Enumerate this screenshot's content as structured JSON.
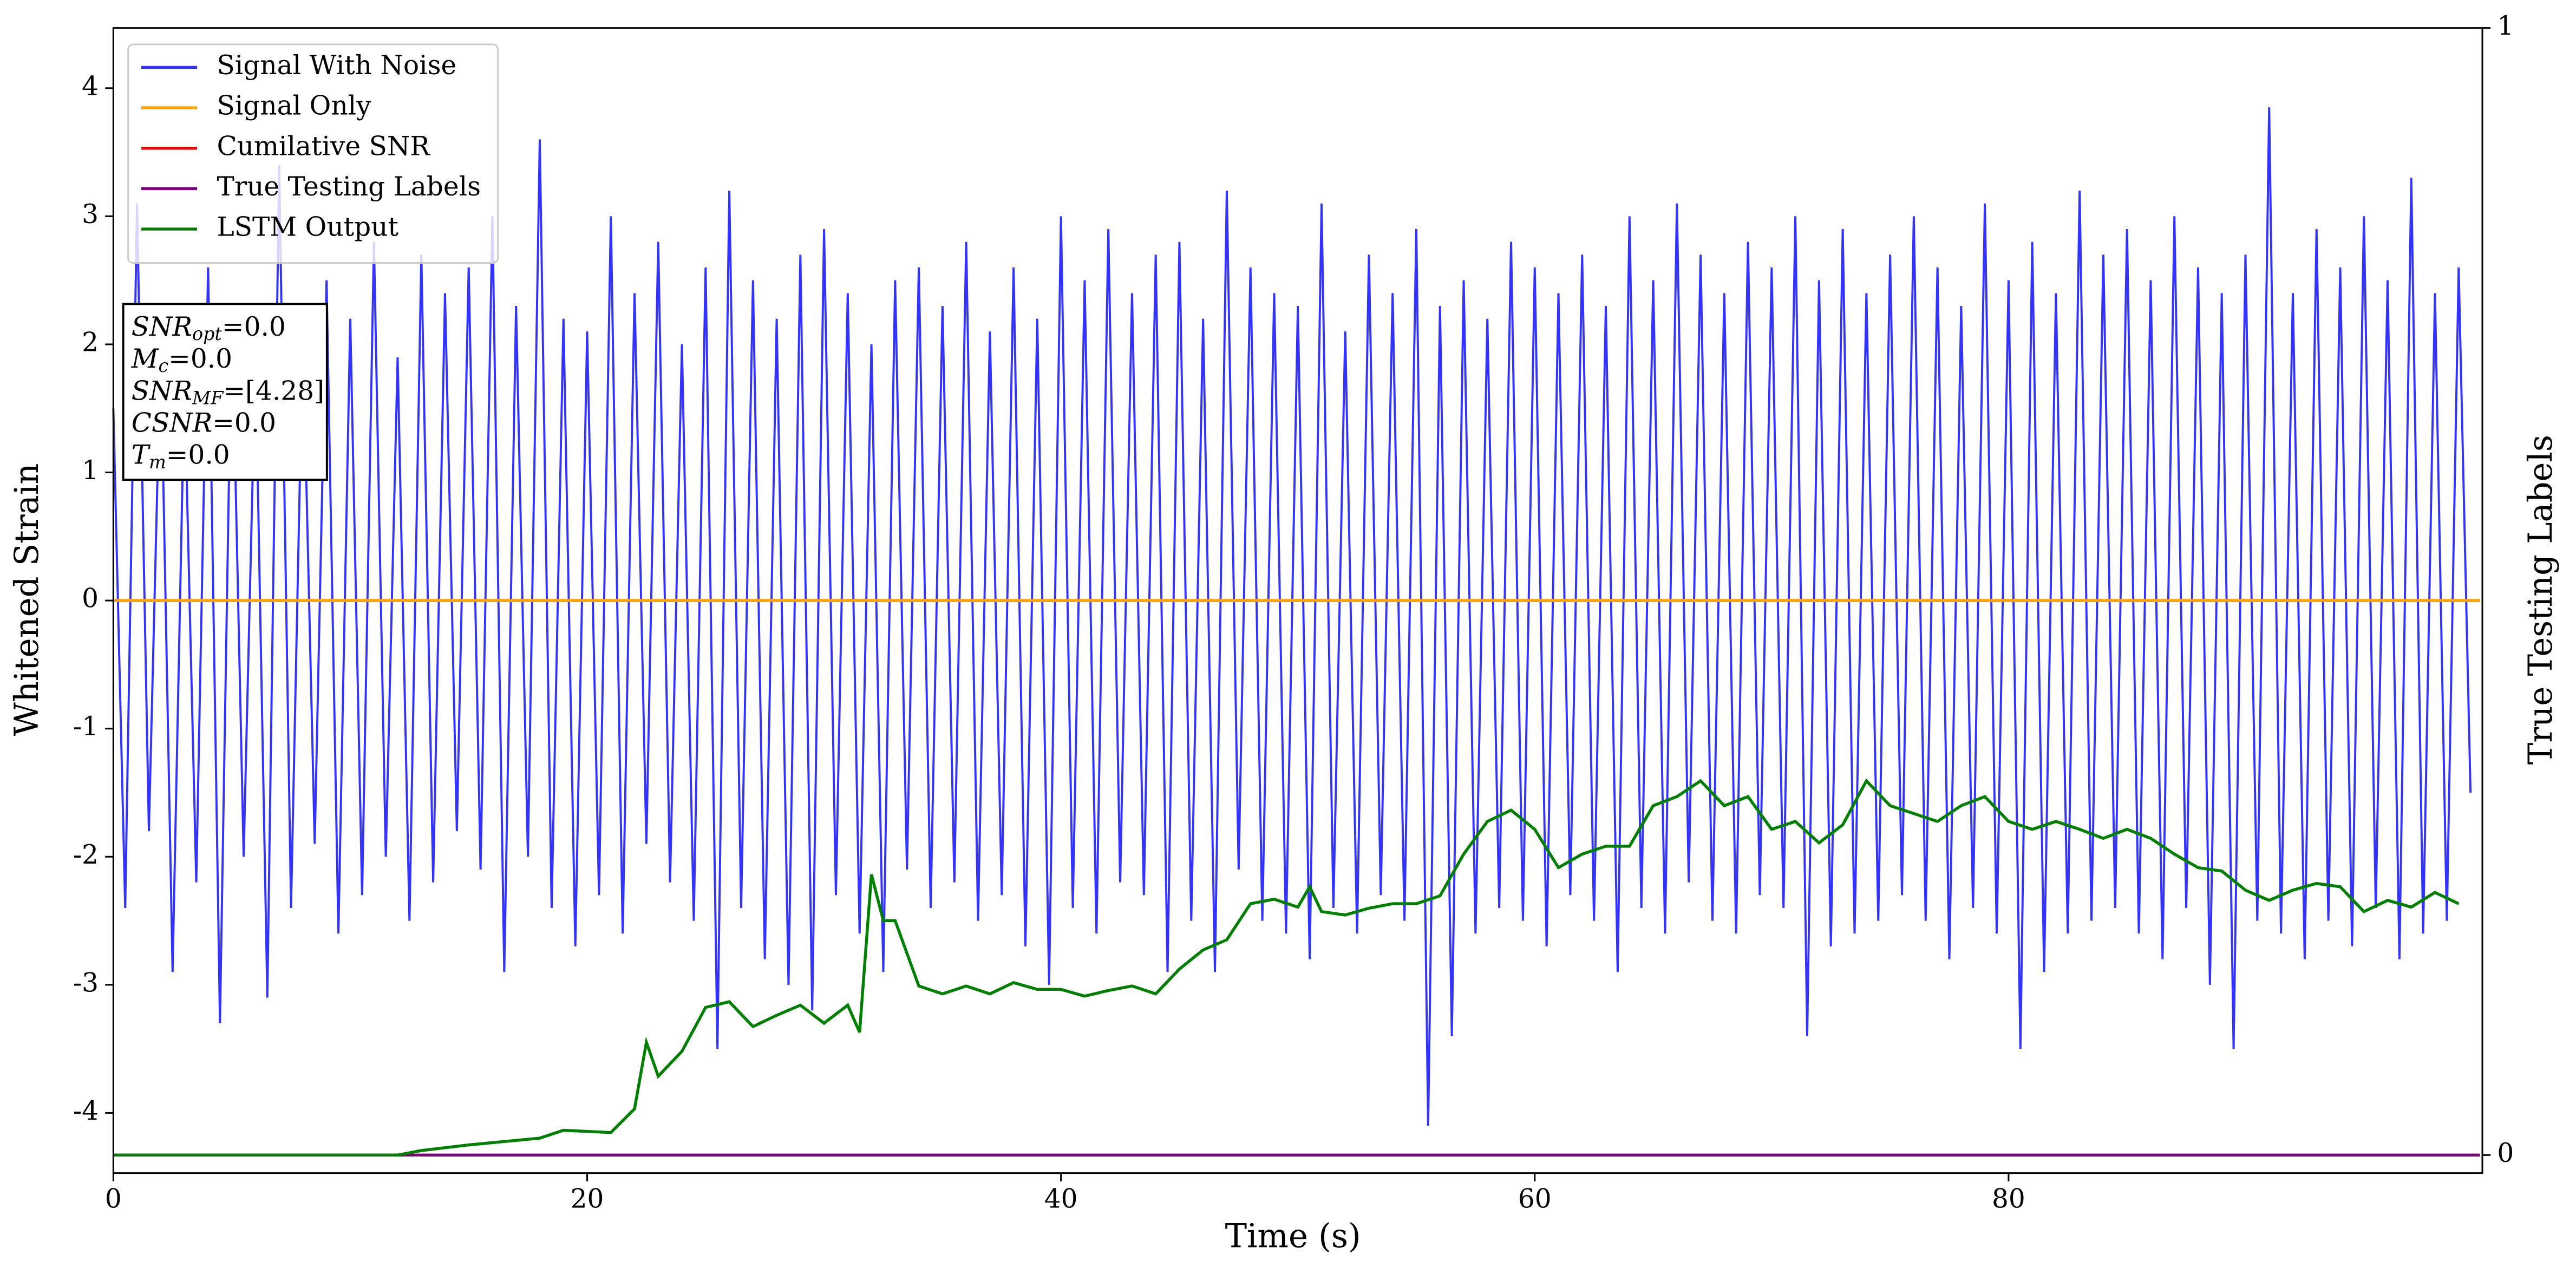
{
  "chart_data": {
    "type": "line",
    "xlabel": "Time (s)",
    "ylabel": "Whitened Strain",
    "y2label": "True Testing Labels",
    "xlim": [
      0,
      100
    ],
    "xticks": [
      0,
      20,
      40,
      60,
      80
    ],
    "ylim": [
      -4.47,
      4.47
    ],
    "yticks": [
      -4,
      -3,
      -2,
      -1,
      0,
      1,
      2,
      3,
      4
    ],
    "y2lim": [
      -0.016,
      1
    ],
    "y2ticks": [
      0,
      1
    ],
    "legend": "upper left",
    "annotation": [
      {
        "main": "SNR",
        "sub": "opt",
        "rest": "=0.0"
      },
      {
        "main": "M",
        "sub": "c",
        "rest": "=0.0"
      },
      {
        "main": "SNR",
        "sub": "MF",
        "rest": "=[4.28]"
      },
      {
        "main": "CSNR",
        "rest": "=0.0"
      },
      {
        "main": "T",
        "sub": "m",
        "rest": "=0.0"
      }
    ],
    "series": [
      {
        "name": "Signal With Noise",
        "color": "#3333ff",
        "x": [
          0,
          0.5,
          1,
          1.5,
          2,
          2.5,
          3,
          3.5,
          4,
          4.5,
          5,
          5.5,
          6,
          6.5,
          7,
          7.5,
          8,
          8.5,
          9,
          9.5,
          10,
          10.5,
          11,
          11.5,
          12,
          12.5,
          13,
          13.5,
          14,
          14.5,
          15,
          15.5,
          16,
          16.5,
          17,
          17.5,
          18,
          18.5,
          19,
          19.5,
          20,
          20.5,
          21,
          21.5,
          22,
          22.5,
          23,
          23.5,
          24,
          24.5,
          25,
          25.5,
          26,
          26.5,
          27,
          27.5,
          28,
          28.5,
          29,
          29.5,
          30,
          30.5,
          31,
          31.5,
          32,
          32.5,
          33,
          33.5,
          34,
          34.5,
          35,
          35.5,
          36,
          36.5,
          37,
          37.5,
          38,
          38.5,
          39,
          39.5,
          40,
          40.5,
          41,
          41.5,
          42,
          42.5,
          43,
          43.5,
          44,
          44.5,
          45,
          45.5,
          46,
          46.5,
          47,
          47.5,
          48,
          48.5,
          49,
          49.5,
          50,
          50.5,
          51,
          51.5,
          52,
          52.5,
          53,
          53.5,
          54,
          54.5,
          55,
          55.5,
          56,
          56.5,
          57,
          57.5,
          58,
          58.5,
          59,
          59.5,
          60,
          60.5,
          61,
          61.5,
          62,
          62.5,
          63,
          63.5,
          64,
          64.5,
          65,
          65.5,
          66,
          66.5,
          67,
          67.5,
          68,
          68.5,
          69,
          69.5,
          70,
          70.5,
          71,
          71.5,
          72,
          72.5,
          73,
          73.5,
          74,
          74.5,
          75,
          75.5,
          76,
          76.5,
          77,
          77.5,
          78,
          78.5,
          79,
          79.5,
          80,
          80.5,
          81,
          81.5,
          82,
          82.5,
          83,
          83.5,
          84,
          84.5,
          85,
          85.5,
          86,
          86.5,
          87,
          87.5,
          88,
          88.5,
          89,
          89.5,
          90,
          90.5,
          91,
          91.5,
          92,
          92.5,
          93,
          93.5,
          94,
          94.5,
          95,
          95.5,
          96,
          96.5,
          97,
          97.5,
          98,
          98.5,
          99,
          99.5
        ],
        "values": [
          1.5,
          -2.4,
          3.1,
          -1.8,
          2.0,
          -2.9,
          1.7,
          -2.2,
          2.6,
          -3.3,
          2.3,
          -2.0,
          1.9,
          -3.1,
          3.4,
          -2.4,
          2.1,
          -1.9,
          2.5,
          -2.6,
          2.2,
          -2.3,
          2.8,
          -2.0,
          1.9,
          -2.5,
          2.7,
          -2.2,
          2.4,
          -1.8,
          2.6,
          -2.1,
          3.0,
          -2.9,
          2.3,
          -2.0,
          3.6,
          -2.4,
          2.2,
          -2.7,
          2.1,
          -2.3,
          3.0,
          -2.6,
          2.4,
          -1.9,
          2.8,
          -2.2,
          2.0,
          -2.5,
          2.6,
          -3.5,
          3.2,
          -2.4,
          2.5,
          -2.8,
          2.2,
          -3.0,
          2.7,
          -3.2,
          2.9,
          -2.3,
          2.4,
          -2.6,
          2.0,
          -2.9,
          2.5,
          -2.1,
          2.6,
          -2.4,
          2.3,
          -2.2,
          2.8,
          -2.5,
          2.1,
          -2.3,
          2.6,
          -2.7,
          2.2,
          -3.0,
          3.0,
          -2.4,
          2.5,
          -2.6,
          2.9,
          -2.2,
          2.4,
          -2.3,
          2.7,
          -2.9,
          2.8,
          -2.5,
          2.2,
          -2.9,
          3.2,
          -2.1,
          2.6,
          -2.5,
          2.4,
          -2.6,
          2.3,
          -2.8,
          3.1,
          -2.4,
          2.1,
          -2.6,
          2.7,
          -2.3,
          2.4,
          -2.5,
          2.9,
          -4.1,
          2.3,
          -3.4,
          2.5,
          -2.6,
          2.2,
          -2.4,
          2.8,
          -2.5,
          2.6,
          -2.7,
          2.4,
          -2.3,
          2.7,
          -2.5,
          2.3,
          -2.9,
          3.0,
          -2.4,
          2.5,
          -2.6,
          3.1,
          -2.2,
          2.7,
          -2.5,
          2.4,
          -2.6,
          2.8,
          -2.3,
          2.6,
          -2.4,
          3.0,
          -3.4,
          2.5,
          -2.7,
          2.9,
          -2.6,
          2.4,
          -2.5,
          2.7,
          -2.3,
          3.0,
          -2.5,
          2.6,
          -2.8,
          2.3,
          -2.4,
          3.1,
          -2.6,
          2.5,
          -3.5,
          2.8,
          -2.9,
          2.4,
          -2.6,
          3.2,
          -2.5,
          2.7,
          -2.4,
          2.9,
          -2.6,
          2.5,
          -2.8,
          3.0,
          -2.4,
          2.6,
          -3.0,
          2.4,
          -3.5,
          2.7,
          -2.5,
          3.85,
          -2.6,
          2.4,
          -2.8,
          2.9,
          -2.5,
          2.6,
          -2.7,
          3.0,
          -2.4,
          2.5,
          -2.8,
          3.3,
          -2.6,
          2.4,
          -2.5,
          2.6,
          -1.5
        ]
      },
      {
        "name": "Signal Only",
        "color": "orange",
        "x": [
          0,
          99.9
        ],
        "values": [
          0,
          0
        ]
      },
      {
        "name": "Cumilative SNR",
        "color": "red",
        "x": [
          0,
          99.9
        ],
        "values": [
          0,
          0
        ]
      },
      {
        "name": "True Testing Labels",
        "color": "purple",
        "axis": "y2",
        "x": [
          0,
          99.9
        ],
        "values": [
          0,
          0
        ]
      },
      {
        "name": "LSTM Output",
        "color": "green",
        "axis": "y2",
        "x": [
          0,
          12,
          13,
          15,
          18,
          19,
          21,
          22,
          22.5,
          23,
          24,
          25,
          26,
          27,
          28,
          29,
          30,
          31,
          31.5,
          32,
          32.5,
          33,
          34,
          35,
          36,
          37,
          38,
          39,
          40,
          41,
          42,
          43,
          44,
          45,
          46,
          47,
          48,
          49,
          50,
          50.5,
          51,
          52,
          53,
          54,
          55,
          56,
          57,
          58,
          59,
          60,
          61,
          62,
          63,
          64,
          65,
          66,
          67,
          68,
          69,
          70,
          71,
          72,
          73,
          74,
          75,
          76,
          77,
          78,
          79,
          80,
          81,
          82,
          83,
          84,
          85,
          86,
          87,
          88,
          89,
          90,
          91,
          92,
          93,
          94,
          95,
          96,
          97,
          98,
          99
        ],
        "values": [
          0,
          0,
          0.004,
          0.009,
          0.015,
          0.022,
          0.02,
          0.041,
          0.1,
          0.07,
          0.092,
          0.131,
          0.136,
          0.114,
          0.124,
          0.133,
          0.117,
          0.133,
          0.109,
          0.249,
          0.208,
          0.208,
          0.15,
          0.143,
          0.15,
          0.143,
          0.153,
          0.147,
          0.147,
          0.141,
          0.146,
          0.15,
          0.143,
          0.165,
          0.182,
          0.191,
          0.223,
          0.227,
          0.22,
          0.238,
          0.216,
          0.213,
          0.219,
          0.223,
          0.223,
          0.23,
          0.267,
          0.296,
          0.306,
          0.289,
          0.255,
          0.267,
          0.274,
          0.274,
          0.31,
          0.318,
          0.332,
          0.31,
          0.318,
          0.289,
          0.296,
          0.277,
          0.293,
          0.332,
          0.31,
          0.303,
          0.296,
          0.31,
          0.318,
          0.296,
          0.289,
          0.296,
          0.289,
          0.281,
          0.289,
          0.281,
          0.267,
          0.255,
          0.252,
          0.235,
          0.226,
          0.235,
          0.241,
          0.238,
          0.216,
          0.226,
          0.22,
          0.233,
          0.223
        ]
      }
    ]
  }
}
